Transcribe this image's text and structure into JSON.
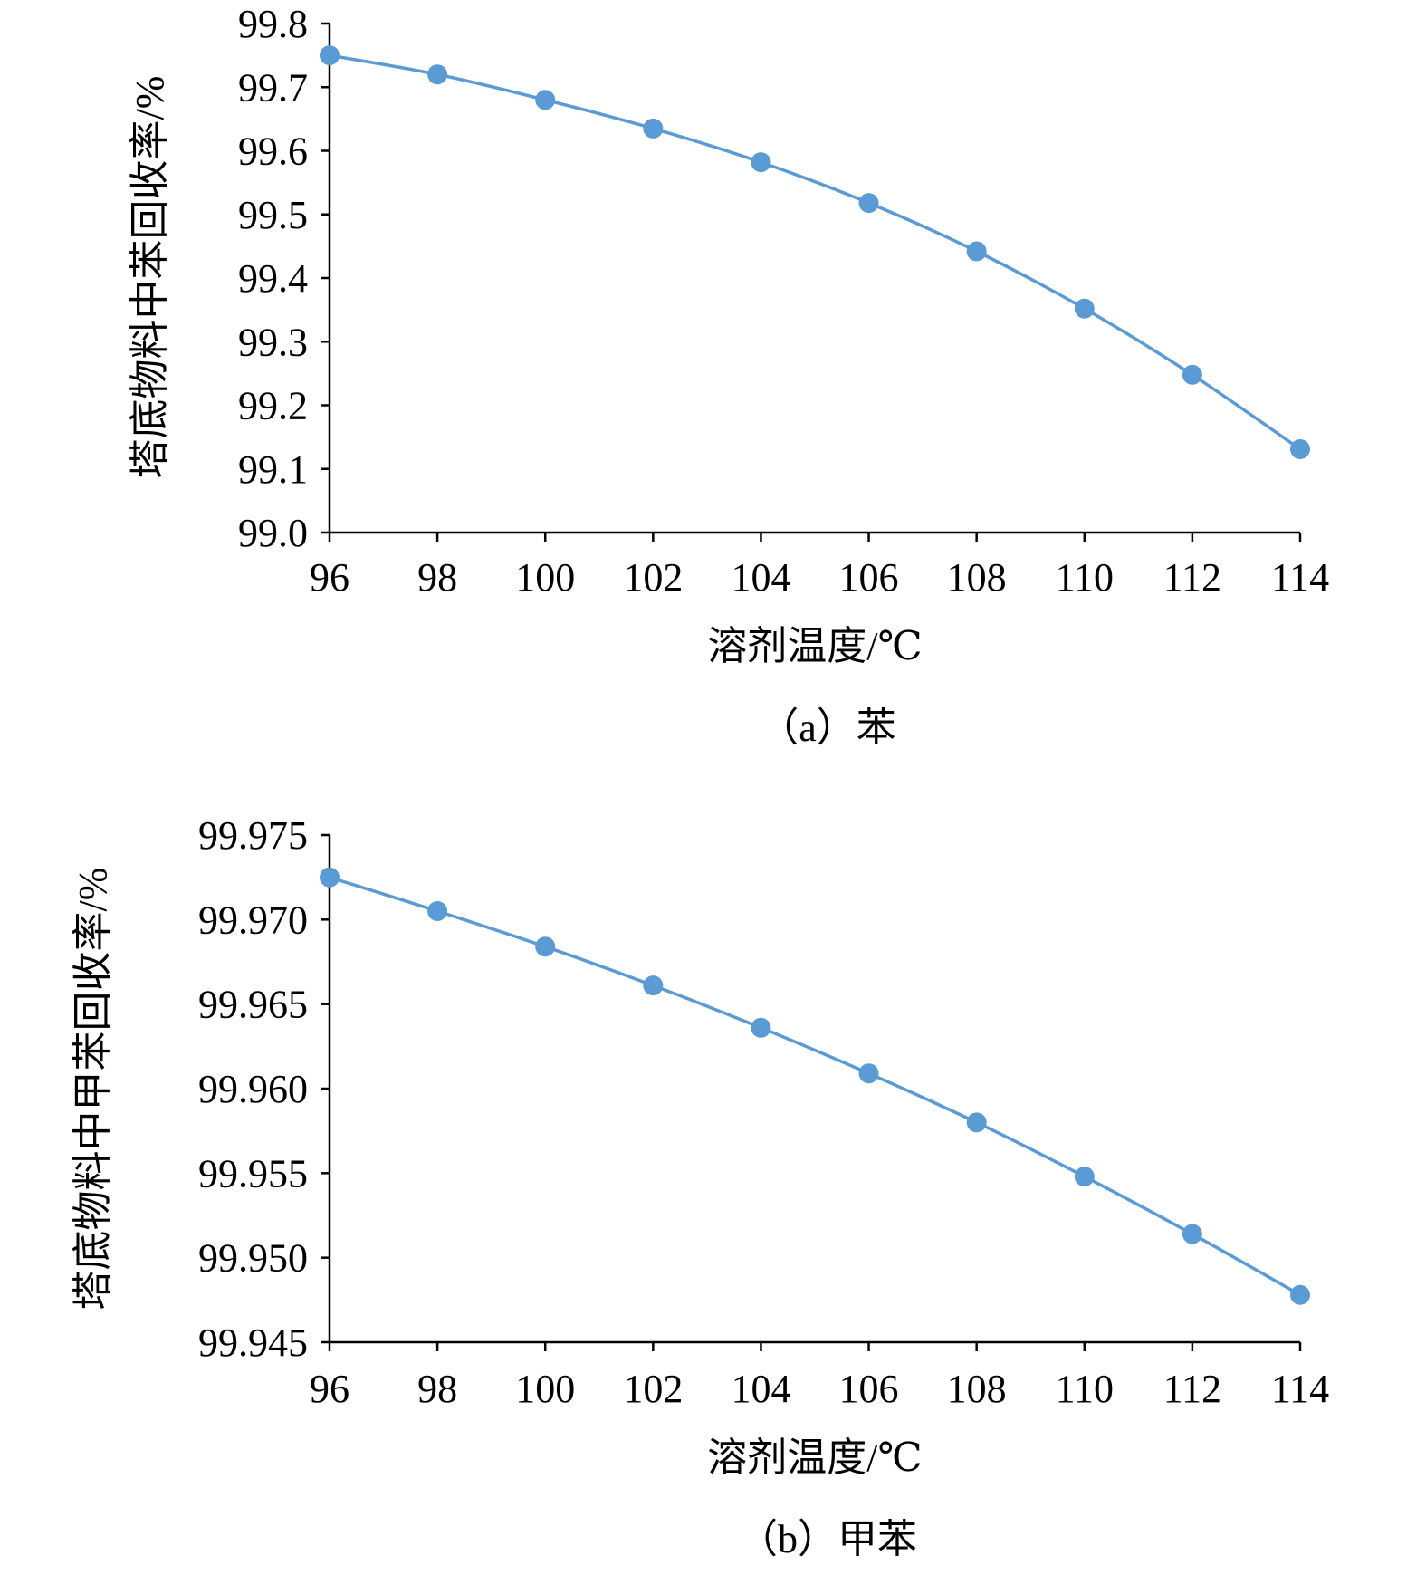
{
  "chart_data": [
    {
      "type": "line",
      "caption": "（a）苯",
      "xlabel": "溶剂温度/℃",
      "ylabel": "塔底物料中苯回收率/%",
      "x": [
        96,
        98,
        100,
        102,
        104,
        106,
        108,
        110,
        112,
        114
      ],
      "series": [
        {
          "values": [
            99.75,
            99.72,
            99.68,
            99.635,
            99.582,
            99.518,
            99.442,
            99.352,
            99.248,
            99.131
          ]
        }
      ],
      "xlim": [
        96,
        114
      ],
      "ylim": [
        99.0,
        99.8
      ],
      "xticks": [
        "96",
        "98",
        "100",
        "102",
        "104",
        "106",
        "108",
        "110",
        "112",
        "114"
      ],
      "yticks": [
        "99.0",
        "99.1",
        "99.2",
        "99.3",
        "99.4",
        "99.5",
        "99.6",
        "99.7",
        "99.8"
      ],
      "grid": false,
      "line_color": "#5b9bd5",
      "smooth": true,
      "markers": "circle"
    },
    {
      "type": "line",
      "caption": "（b）甲苯",
      "xlabel": "溶剂温度/℃",
      "ylabel": "塔底物料中甲苯回收率/%",
      "x": [
        96,
        98,
        100,
        102,
        104,
        106,
        108,
        110,
        112,
        114
      ],
      "series": [
        {
          "values": [
            99.9725,
            99.9705,
            99.9684,
            99.9661,
            99.9636,
            99.9609,
            99.958,
            99.9548,
            99.9514,
            99.9478
          ]
        }
      ],
      "xlim": [
        96,
        114
      ],
      "ylim": [
        99.945,
        99.975
      ],
      "xticks": [
        "96",
        "98",
        "100",
        "102",
        "104",
        "106",
        "108",
        "110",
        "112",
        "114"
      ],
      "yticks": [
        "99.945",
        "99.950",
        "99.955",
        "99.960",
        "99.965",
        "99.970",
        "99.975"
      ],
      "grid": false,
      "line_color": "#5b9bd5",
      "smooth": true,
      "markers": "circle"
    }
  ]
}
